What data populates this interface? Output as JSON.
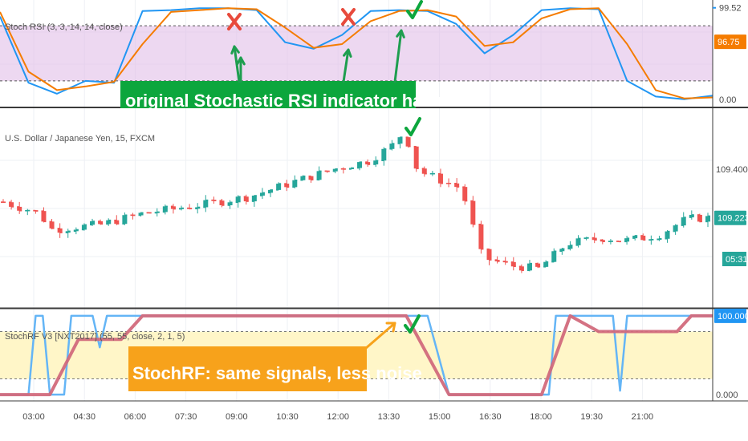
{
  "colors": {
    "up": "#26a69a",
    "down": "#ef5350",
    "rsi_k": "#2196f3",
    "rsi_d": "#f57c00",
    "rsi_band": "#e1bee7",
    "rf_blue": "#64b5f6",
    "rf_pink": "#d26a7c",
    "rf_band": "#fff6c8",
    "annot_green": "#0ca63d",
    "annot_orange": "#f7a21b",
    "badge_teal": "#26a69a",
    "badge_orange": "#f57c00",
    "badge_blue": "#2196f3"
  },
  "x_axis": {
    "labels": [
      "03:00",
      "04:30",
      "06:00",
      "07:30",
      "09:00",
      "10:30",
      "12:00",
      "13:30",
      "15:00",
      "16:30",
      "18:00",
      "19:30",
      "21:00"
    ]
  },
  "chart_data": [
    {
      "type": "line",
      "title": "Stoch RSI (3, 3, 14, 14, close)",
      "ylim": [
        -8,
        108
      ],
      "y_ticks": [
        "99.52",
        "0.00"
      ],
      "price_badges": [
        {
          "label": "99.52",
          "value": 99.52,
          "color": "blue"
        },
        {
          "label": "96.75",
          "value": 80,
          "color": "orange"
        }
      ],
      "bands": [
        20,
        80
      ],
      "series": [
        {
          "key": "k",
          "x": [
            0,
            4,
            8,
            12,
            16,
            20,
            24,
            28,
            32,
            36,
            40,
            44,
            48,
            52,
            56,
            60,
            64,
            68,
            72,
            76,
            80,
            84,
            88,
            92,
            96,
            100
          ],
          "values": [
            90,
            18,
            6,
            20,
            18,
            96,
            97,
            99,
            99,
            97,
            62,
            55,
            70,
            96,
            97,
            96,
            82,
            50,
            70,
            97,
            99,
            98,
            20,
            3,
            0,
            4
          ]
        },
        {
          "key": "d",
          "x": [
            0,
            4,
            8,
            12,
            16,
            20,
            24,
            28,
            32,
            36,
            40,
            44,
            48,
            52,
            56,
            60,
            64,
            68,
            72,
            76,
            80,
            84,
            88,
            92,
            96,
            100
          ],
          "values": [
            95,
            30,
            10,
            14,
            19,
            60,
            95,
            97,
            99,
            98,
            78,
            56,
            60,
            85,
            96,
            97,
            90,
            58,
            62,
            88,
            98,
            99,
            60,
            10,
            1,
            2
          ]
        }
      ],
      "annotation": "original Stochastic RSI indicator has noise"
    },
    {
      "type": "candlestick",
      "title": "U.S. Dollar / Japanese Yen, 15, FXCM",
      "ylim": [
        108.9,
        109.62
      ],
      "y_ticks": [
        "109.400"
      ],
      "price_badges": [
        {
          "label": "109.223",
          "value": 109.223,
          "color": "teal"
        },
        {
          "label": "05:31",
          "value": 109.15,
          "color": "teal"
        }
      ]
    },
    {
      "type": "line",
      "title": "StochRF V3 [NXT2017] (55, 55, close, 2, 1, 5)",
      "ylim": [
        -8,
        108
      ],
      "y_ticks": [
        "100.000",
        "0.000"
      ],
      "price_badges": [
        {
          "label": "100.000",
          "value": 100,
          "color": "blue"
        }
      ],
      "bands": [
        20,
        80
      ],
      "series": [
        {
          "key": "blue",
          "x": [
            0,
            4,
            5,
            6,
            7,
            9,
            10,
            13,
            14,
            15,
            16,
            17,
            20,
            57,
            60,
            63,
            64,
            74,
            77,
            78,
            80,
            81,
            82,
            83,
            86,
            87,
            88,
            89,
            95,
            100
          ],
          "values": [
            0,
            0,
            100,
            100,
            0,
            0,
            100,
            100,
            60,
            100,
            100,
            100,
            100,
            100,
            100,
            0,
            0,
            0,
            0,
            100,
            100,
            100,
            100,
            100,
            100,
            5,
            100,
            100,
            100,
            100
          ]
        },
        {
          "key": "pink",
          "x": [
            0,
            3,
            7,
            11,
            17,
            20,
            56,
            57,
            63,
            76,
            80,
            84,
            87,
            95,
            97,
            100
          ],
          "values": [
            0,
            0,
            0,
            70,
            70,
            100,
            100,
            100,
            0,
            0,
            100,
            80,
            80,
            80,
            100,
            100
          ]
        }
      ],
      "annotation": "StochRF: same signals, less noise"
    }
  ]
}
